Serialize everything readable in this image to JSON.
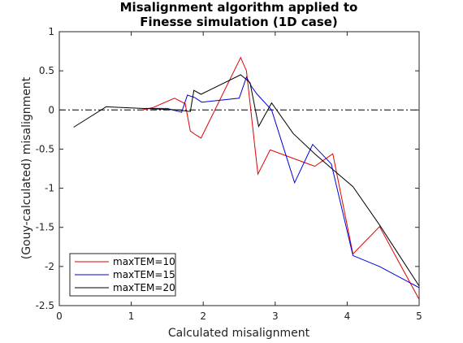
{
  "chart_data": {
    "type": "line",
    "title": [
      "Misalignment algorithm applied to",
      "Finesse simulation (1D case)"
    ],
    "xlabel": "Calculated misalignment",
    "ylabel": "(Gouy-calculated) misalignment",
    "xlim": [
      0,
      5
    ],
    "ylim": [
      -2.5,
      1
    ],
    "xticks": [
      0,
      1,
      2,
      3,
      4,
      5
    ],
    "yticks": [
      -2.5,
      -2,
      -1.5,
      -1,
      -0.5,
      0,
      0.5,
      1
    ],
    "xtick_labels": [
      "0",
      "1",
      "2",
      "3",
      "4",
      "5"
    ],
    "ytick_labels": [
      "-2.5",
      "-2",
      "-1.5",
      "-1",
      "-0.5",
      "0",
      "0.5",
      "1"
    ],
    "grid": false,
    "legend_position": "bottom-left",
    "reference_line": {
      "y": 0,
      "style": "dash-dot",
      "color": "#000000"
    },
    "series": [
      {
        "name": "maxTEM=10",
        "color": "#e00000",
        "x": [
          1.15,
          1.3,
          1.6,
          1.75,
          1.82,
          1.9,
          1.97,
          2.52,
          2.6,
          2.76,
          2.93,
          3.55,
          3.8,
          4.08,
          4.45,
          5.0
        ],
        "y": [
          0.0,
          0.03,
          0.15,
          0.08,
          -0.27,
          -0.32,
          -0.36,
          0.67,
          0.5,
          -0.82,
          -0.51,
          -0.72,
          -0.56,
          -1.84,
          -1.49,
          -2.42
        ]
      },
      {
        "name": "maxTEM=15",
        "color": "#0000dd",
        "x": [
          1.2,
          1.5,
          1.7,
          1.78,
          1.88,
          1.98,
          2.5,
          2.6,
          2.67,
          2.75,
          2.95,
          3.27,
          3.52,
          3.78,
          4.08,
          4.45,
          5.0
        ],
        "y": [
          0.02,
          0.02,
          -0.03,
          0.19,
          0.16,
          0.1,
          0.15,
          0.42,
          0.3,
          0.2,
          0.0,
          -0.93,
          -0.44,
          -0.69,
          -1.86,
          -2.0,
          -2.27
        ]
      },
      {
        "name": "maxTEM=20",
        "color": "#000000",
        "x": [
          0.2,
          0.65,
          1.15,
          1.65,
          1.82,
          1.87,
          1.97,
          2.52,
          2.65,
          2.77,
          2.95,
          3.25,
          3.55,
          3.8,
          4.08,
          4.45,
          5.0
        ],
        "y": [
          -0.22,
          0.04,
          0.02,
          0.0,
          -0.02,
          0.25,
          0.2,
          0.45,
          0.35,
          -0.21,
          0.09,
          -0.3,
          -0.56,
          -0.76,
          -0.98,
          -1.47,
          -2.25
        ]
      }
    ]
  }
}
